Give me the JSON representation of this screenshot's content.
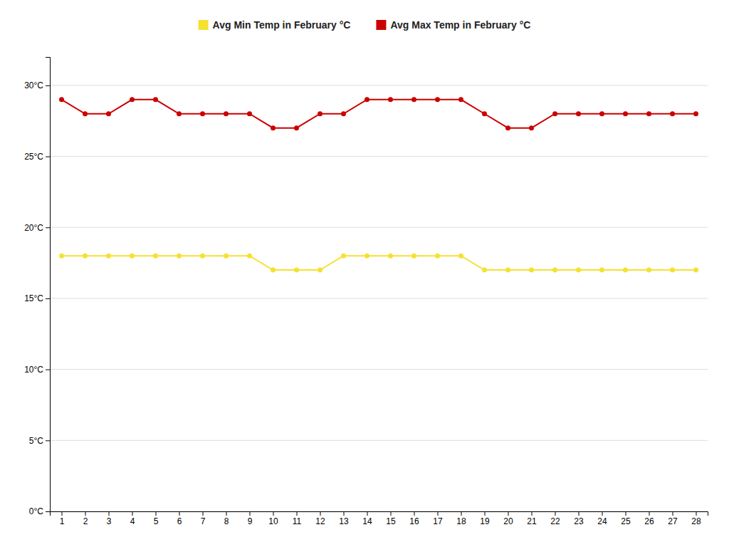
{
  "chart_data": {
    "type": "line",
    "x": [
      1,
      2,
      3,
      4,
      5,
      6,
      7,
      8,
      9,
      10,
      11,
      12,
      13,
      14,
      15,
      16,
      17,
      18,
      19,
      20,
      21,
      22,
      23,
      24,
      25,
      26,
      27,
      28
    ],
    "series": [
      {
        "name": "Avg Min Temp in February °C",
        "color": "#f5e130",
        "marker": "circle",
        "values": [
          18,
          18,
          18,
          18,
          18,
          18,
          18,
          18,
          18,
          17,
          17,
          17,
          18,
          18,
          18,
          18,
          18,
          18,
          17,
          17,
          17,
          17,
          17,
          17,
          17,
          17,
          17,
          17
        ]
      },
      {
        "name": "Avg Max Temp in February °C",
        "color": "#cc0000",
        "marker": "circle",
        "values": [
          29,
          28,
          28,
          29,
          29,
          28,
          28,
          28,
          28,
          27,
          27,
          28,
          28,
          29,
          29,
          29,
          29,
          29,
          28,
          27,
          27,
          28,
          28,
          28,
          28,
          28,
          28,
          28
        ]
      }
    ],
    "xlim": [
      0.5,
      28.5
    ],
    "xticks": [
      1,
      2,
      3,
      4,
      5,
      6,
      7,
      8,
      9,
      10,
      11,
      12,
      13,
      14,
      15,
      16,
      17,
      18,
      19,
      20,
      21,
      22,
      23,
      24,
      25,
      26,
      27,
      28
    ],
    "ylim": [
      0,
      32
    ],
    "yticks": [
      {
        "value": 0,
        "label": "0°C"
      },
      {
        "value": 5,
        "label": "5°C"
      },
      {
        "value": 10,
        "label": "10°C"
      },
      {
        "value": 15,
        "label": "15°C"
      },
      {
        "value": 20,
        "label": "20°C"
      },
      {
        "value": 25,
        "label": "25°C"
      },
      {
        "value": 30,
        "label": "30°C"
      }
    ],
    "grid": "y",
    "legend": "top"
  }
}
